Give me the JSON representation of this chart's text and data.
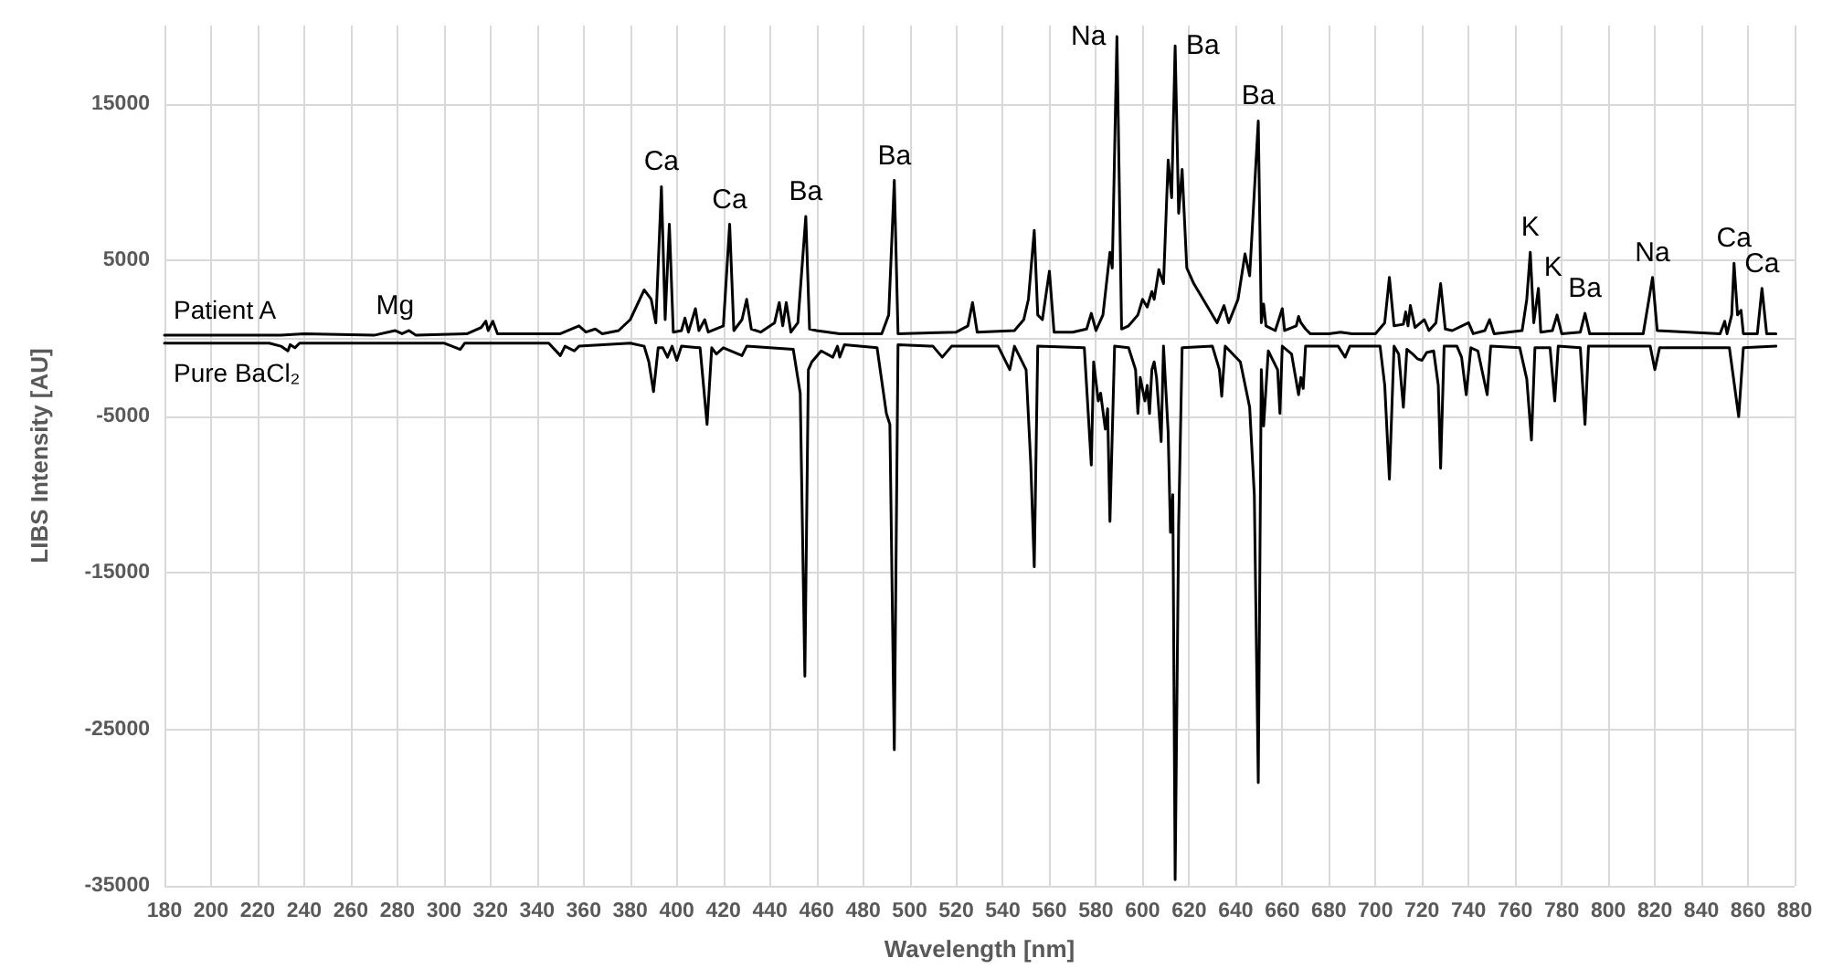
{
  "chart_data": {
    "type": "line",
    "xlabel": "Wavelength [nm]",
    "ylabel": "LIBS Intensity [AU]",
    "xlim": [
      180,
      880
    ],
    "xticks": [
      180,
      200,
      220,
      240,
      260,
      280,
      300,
      320,
      340,
      360,
      380,
      400,
      420,
      440,
      460,
      480,
      500,
      520,
      540,
      560,
      580,
      600,
      620,
      640,
      660,
      680,
      700,
      720,
      740,
      760,
      780,
      800,
      820,
      840,
      860,
      880
    ],
    "ylim": [
      -35000,
      20000
    ],
    "yticks": [
      -35000,
      -25000,
      -15000,
      -5000,
      5000,
      15000
    ],
    "grid": true,
    "legend": false,
    "marker": "none",
    "line_style": "solid",
    "series": [
      {
        "name": "Patient A",
        "color": "#000000",
        "x": [
          180,
          230,
          240,
          270,
          279,
          282,
          285,
          288,
          310,
          316,
          318,
          319,
          321,
          323,
          350,
          358,
          361,
          365,
          368,
          375,
          380,
          386,
          389,
          391,
          393.4,
          395,
          396.8,
          398.5,
          402,
          403.5,
          405,
          408,
          409.5,
          412,
          413.5,
          420,
          422.7,
          424.5,
          428,
          430,
          432,
          436,
          442,
          444,
          445.5,
          447,
          449,
          452,
          455.4,
          457,
          460,
          470,
          488,
          491,
          493.4,
          495,
          520,
          525,
          527,
          529,
          545,
          549,
          551,
          553.5,
          555,
          557,
          560,
          562,
          570,
          576,
          578,
          580,
          583,
          586,
          587,
          589,
          591,
          594,
          598,
          600,
          602,
          604,
          605,
          607,
          609,
          611,
          612.5,
          614,
          615.5,
          617,
          619,
          622,
          628,
          632,
          635,
          637,
          641,
          644,
          646,
          649.7,
          651,
          652,
          653,
          657,
          660,
          661,
          666,
          667,
          668,
          670,
          672,
          680,
          685,
          690,
          700,
          704,
          706,
          708,
          712,
          713,
          714,
          715,
          717,
          721,
          723,
          726,
          728,
          730,
          733,
          740,
          742,
          747,
          749,
          751,
          763,
          765,
          766.5,
          768,
          770,
          771,
          776,
          778,
          780,
          788,
          790,
          792,
          815,
          818,
          819,
          821,
          848,
          850,
          851,
          853,
          854,
          855.5,
          857,
          858,
          864,
          866,
          868,
          872
        ],
        "values": [
          200,
          200,
          300,
          200,
          500,
          300,
          500,
          200,
          300,
          700,
          1100,
          500,
          1100,
          300,
          300,
          800,
          400,
          600,
          300,
          500,
          1200,
          3100,
          2500,
          1000,
          9700,
          1200,
          7300,
          400,
          500,
          1300,
          400,
          1900,
          500,
          1200,
          400,
          800,
          7300,
          500,
          1200,
          2500,
          600,
          400,
          1000,
          2300,
          800,
          2300,
          400,
          1000,
          7800,
          600,
          500,
          300,
          300,
          1500,
          10100,
          300,
          400,
          800,
          2300,
          400,
          500,
          1200,
          2500,
          6900,
          1500,
          1200,
          4300,
          400,
          400,
          600,
          1600,
          500,
          1500,
          5500,
          4500,
          19300,
          600,
          800,
          1500,
          2500,
          2000,
          3000,
          2500,
          4400,
          3500,
          11400,
          9000,
          18700,
          8000,
          10800,
          4500,
          3500,
          2000,
          1000,
          2100,
          1000,
          2500,
          5400,
          4000,
          13900,
          1000,
          2200,
          800,
          500,
          1900,
          500,
          800,
          1400,
          1000,
          600,
          300,
          300,
          400,
          300,
          300,
          1000,
          3900,
          800,
          900,
          1700,
          800,
          2100,
          700,
          1200,
          500,
          1000,
          3500,
          600,
          500,
          1000,
          300,
          500,
          1200,
          300,
          500,
          2500,
          5500,
          1000,
          3200,
          400,
          500,
          1500,
          300,
          400,
          1600,
          300,
          300,
          3000,
          3900,
          500,
          300,
          1100,
          300,
          1500,
          4800,
          1500,
          1800,
          300,
          300,
          3200,
          300,
          300
        ]
      },
      {
        "name": "Pure BaCl₂",
        "color": "#000000",
        "x": [
          180,
          225,
          230,
          233,
          234,
          236,
          238,
          300,
          307,
          309,
          345,
          350,
          352,
          356,
          358,
          380,
          386,
          388,
          390,
          392,
          394,
          396,
          398,
          400,
          402,
          410,
          413,
          415,
          417,
          420,
          428,
          430,
          440,
          450,
          453,
          455,
          456.5,
          458,
          462,
          467,
          469,
          470,
          472,
          486,
          490,
          491.5,
          493.4,
          495,
          510,
          514,
          518,
          538,
          543,
          545,
          550,
          552,
          553.5,
          555,
          575,
          578,
          579,
          581,
          582,
          584,
          585,
          586,
          588,
          594,
          597,
          598,
          599,
          601,
          602,
          603,
          604,
          605,
          606,
          608,
          609,
          611,
          612,
          613,
          614,
          615.5,
          617,
          630,
          633,
          634,
          635.5,
          642,
          646,
          648,
          649.7,
          651,
          652,
          654,
          658,
          659,
          660,
          664,
          667,
          668,
          669,
          670,
          684,
          687,
          689,
          702,
          704,
          706,
          708,
          710,
          712,
          713.5,
          716,
          718,
          720,
          722,
          725,
          727,
          728,
          729.5,
          735,
          737,
          739,
          741,
          744,
          748,
          749.5,
          762,
          765,
          767,
          768.5,
          775,
          777,
          778.5,
          788,
          790,
          791.5,
          818,
          820,
          822,
          852,
          856,
          858,
          872
        ],
        "values": [
          -300,
          -300,
          -500,
          -800,
          -400,
          -600,
          -300,
          -300,
          -700,
          -300,
          -300,
          -1100,
          -500,
          -800,
          -500,
          -300,
          -500,
          -1500,
          -3400,
          -600,
          -600,
          -1200,
          -500,
          -1400,
          -500,
          -600,
          -5500,
          -600,
          -1000,
          -600,
          -1100,
          -500,
          -600,
          -700,
          -3500,
          -21600,
          -2000,
          -1500,
          -800,
          -1200,
          -500,
          -1200,
          -400,
          -600,
          -4800,
          -5500,
          -26300,
          -400,
          -500,
          -1200,
          -500,
          -500,
          -2000,
          -500,
          -2000,
          -8000,
          -14600,
          -500,
          -600,
          -8100,
          -1500,
          -4000,
          -3500,
          -5800,
          -4500,
          -11700,
          -500,
          -600,
          -2000,
          -4800,
          -2500,
          -4000,
          -3000,
          -4800,
          -2000,
          -1500,
          -2500,
          -6600,
          -500,
          -6000,
          -12400,
          -10000,
          -34600,
          -12000,
          -600,
          -500,
          -2000,
          -3700,
          -500,
          -1500,
          -4400,
          -10000,
          -28400,
          -2000,
          -5600,
          -800,
          -2000,
          -4800,
          -500,
          -1000,
          -3600,
          -2500,
          -3200,
          -500,
          -500,
          -1200,
          -500,
          -500,
          -3000,
          -9000,
          -500,
          -1000,
          -4400,
          -700,
          -1000,
          -1300,
          -1400,
          -900,
          -800,
          -3000,
          -8300,
          -500,
          -500,
          -1200,
          -3600,
          -600,
          -800,
          -3600,
          -500,
          -600,
          -2600,
          -6500,
          -600,
          -600,
          -4000,
          -500,
          -600,
          -5500,
          -500,
          -500,
          -2000,
          -600,
          -600,
          -5000,
          -600,
          -500
        ]
      }
    ],
    "annotations": [
      {
        "text": "Mg",
        "x": 279,
        "y": 500
      },
      {
        "text": "Ca",
        "x": 393.4,
        "y": 9700
      },
      {
        "text": "Ca",
        "x": 422.7,
        "y": 7300
      },
      {
        "text": "Ba",
        "x": 455.4,
        "y": 7800
      },
      {
        "text": "Ba",
        "x": 493.4,
        "y": 10100
      },
      {
        "text": "Na",
        "x": 589,
        "y": 19300
      },
      {
        "text": "Ba",
        "x": 614,
        "y": 18700
      },
      {
        "text": "Ba",
        "x": 649.7,
        "y": 13900
      },
      {
        "text": "K",
        "x": 766.5,
        "y": 5500
      },
      {
        "text": "K",
        "x": 770,
        "y": 3200
      },
      {
        "text": "Ba",
        "x": 790,
        "y": 1600
      },
      {
        "text": "Na",
        "x": 819,
        "y": 3900
      },
      {
        "text": "Ca",
        "x": 854,
        "y": 4800
      },
      {
        "text": "Ca",
        "x": 866,
        "y": 3200
      }
    ]
  }
}
